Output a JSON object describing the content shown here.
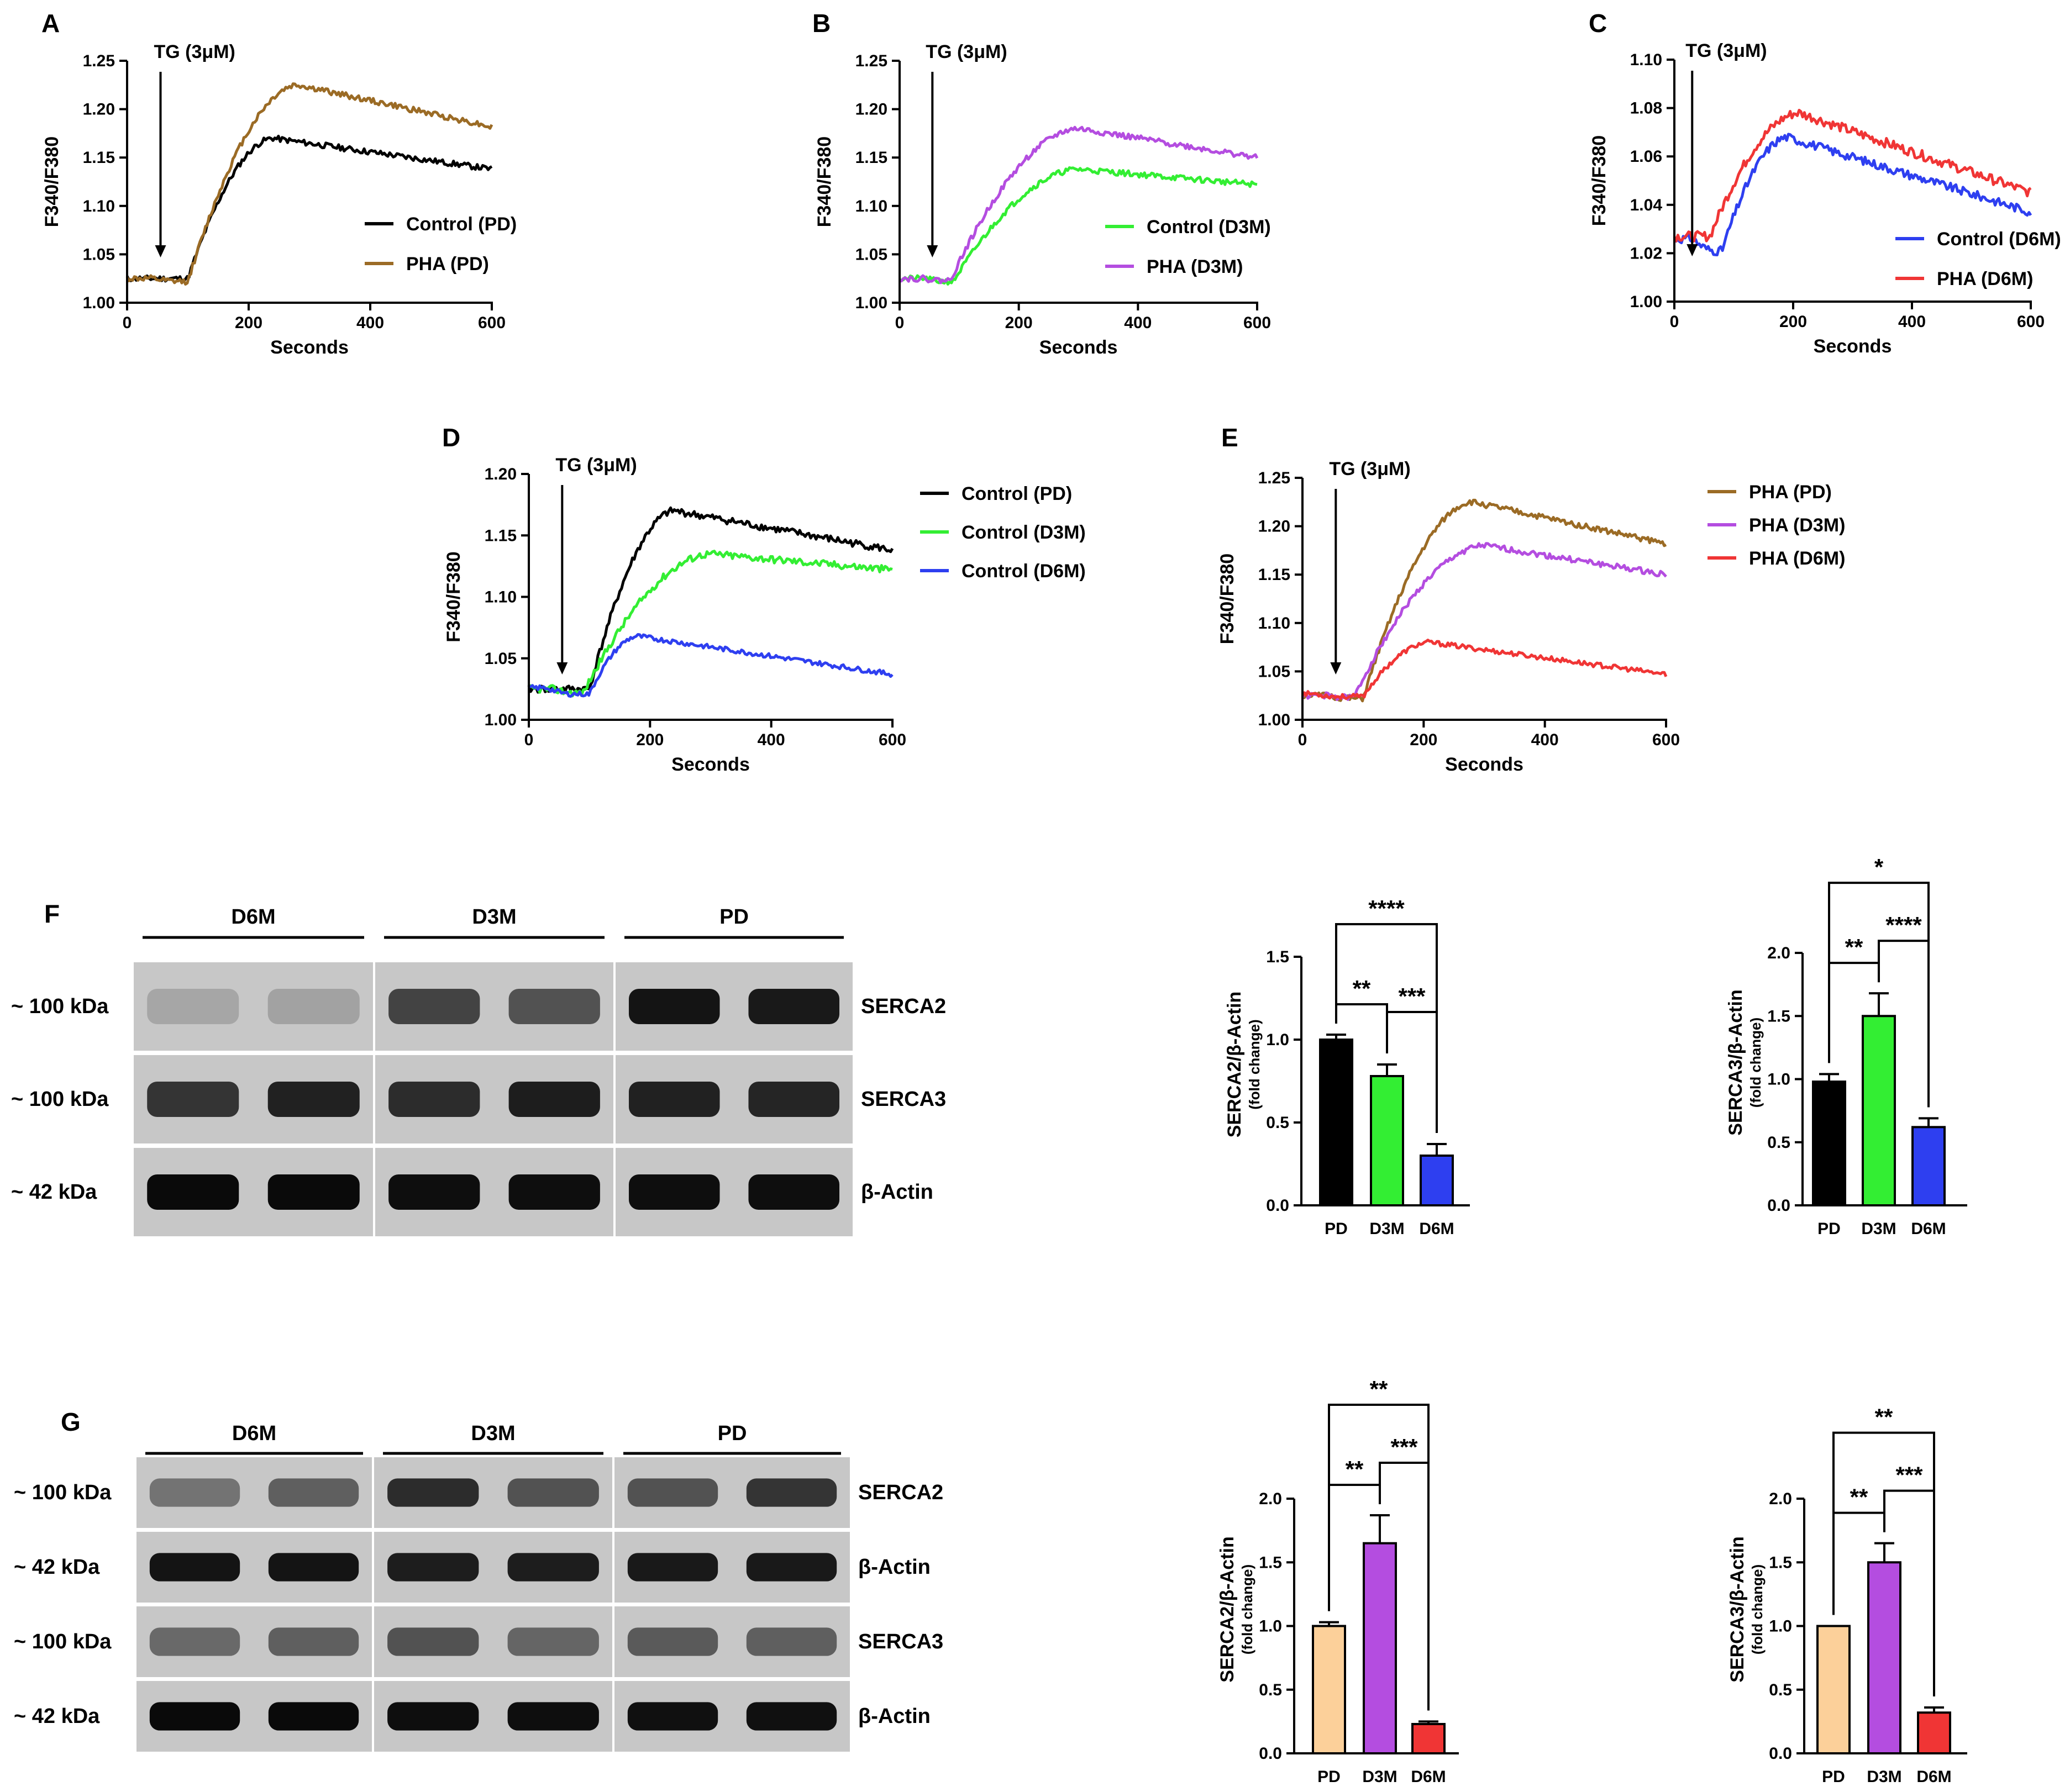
{
  "chart_data": [
    {
      "id": "A",
      "type": "line",
      "panel_label": "A",
      "xlabel": "Seconds",
      "ylabel": "F340/F380",
      "xlim": [
        0,
        600
      ],
      "ylim": [
        1.0,
        1.25
      ],
      "xticks": [
        "0",
        "200",
        "400",
        "600"
      ],
      "yticks": [
        "1.00",
        "1.05",
        "1.10",
        "1.15",
        "1.20",
        "1.25"
      ],
      "annotation": {
        "text": "TG (3μM)",
        "x": 55
      },
      "series": [
        {
          "name": "Control (PD)",
          "color": "#000000",
          "base": 1.025,
          "dip_t": 80,
          "dip": 0.0,
          "rise_start": 100,
          "peak_t": 240,
          "peak": 1.17,
          "end": 1.138,
          "noise": 0.003,
          "seed": 11
        },
        {
          "name": "PHA (PD)",
          "color": "#9b6b25",
          "base": 1.025,
          "dip_t": 80,
          "dip": 0.003,
          "rise_start": 100,
          "peak_t": 280,
          "peak": 1.225,
          "end": 1.182,
          "noise": 0.003,
          "seed": 12
        }
      ]
    },
    {
      "id": "B",
      "type": "line",
      "panel_label": "B",
      "xlabel": "Seconds",
      "ylabel": "F340/F380",
      "xlim": [
        0,
        600
      ],
      "ylim": [
        1.0,
        1.25
      ],
      "xticks": [
        "0",
        "200",
        "400",
        "600"
      ],
      "yticks": [
        "1.00",
        "1.05",
        "1.10",
        "1.15",
        "1.20",
        "1.25"
      ],
      "annotation": {
        "text": "TG (3μM)",
        "x": 55
      },
      "series": [
        {
          "name": "Control (D3M)",
          "color": "#33ee33",
          "base": 1.025,
          "dip_t": 80,
          "dip": 0.003,
          "rise_start": 90,
          "peak_t": 300,
          "peak": 1.138,
          "end": 1.122,
          "noise": 0.003,
          "seed": 21
        },
        {
          "name": "PHA (D3M)",
          "color": "#b44de0",
          "base": 1.025,
          "dip_t": 80,
          "dip": 0.002,
          "rise_start": 85,
          "peak_t": 300,
          "peak": 1.18,
          "end": 1.15,
          "noise": 0.003,
          "seed": 22
        }
      ]
    },
    {
      "id": "C",
      "type": "line",
      "panel_label": "C",
      "xlabel": "Seconds",
      "ylabel": "F340/F380",
      "xlim": [
        0,
        600
      ],
      "ylim": [
        1.0,
        1.1
      ],
      "xticks": [
        "0",
        "200",
        "400",
        "600"
      ],
      "yticks": [
        "1.00",
        "1.02",
        "1.04",
        "1.06",
        "1.08",
        "1.10"
      ],
      "annotation": {
        "text": "TG (3μM)",
        "x": 30
      },
      "series": [
        {
          "name": "Control (D6M)",
          "color": "#2e3ff0",
          "base": 1.026,
          "dip_t": 70,
          "dip": 0.005,
          "rise_start": 80,
          "peak_t": 190,
          "peak": 1.068,
          "end": 1.037,
          "noise": 0.0018,
          "seed": 31
        },
        {
          "name": "PHA (D6M)",
          "color": "#f03535",
          "base": 1.027,
          "dip_t": 60,
          "dip": 0.0,
          "rise_start": 60,
          "peak_t": 210,
          "peak": 1.078,
          "end": 1.045,
          "noise": 0.002,
          "seed": 32
        }
      ]
    },
    {
      "id": "D",
      "type": "line",
      "panel_label": "D",
      "xlabel": "Seconds",
      "ylabel": "F340/F380",
      "xlim": [
        0,
        600
      ],
      "ylim": [
        1.0,
        1.2
      ],
      "xticks": [
        "0",
        "200",
        "400",
        "600"
      ],
      "yticks": [
        "1.00",
        "1.05",
        "1.10",
        "1.15",
        "1.20"
      ],
      "annotation": {
        "text": "TG (3μM)",
        "x": 55
      },
      "series": [
        {
          "name": "Control (PD)",
          "color": "#000000",
          "base": 1.025,
          "dip_t": 80,
          "dip": 0.0,
          "rise_start": 100,
          "peak_t": 240,
          "peak": 1.17,
          "end": 1.138,
          "noise": 0.003,
          "seed": 41
        },
        {
          "name": "Control (D3M)",
          "color": "#33ee33",
          "base": 1.025,
          "dip_t": 80,
          "dip": 0.003,
          "rise_start": 90,
          "peak_t": 300,
          "peak": 1.135,
          "end": 1.122,
          "noise": 0.003,
          "seed": 42
        },
        {
          "name": "Control (D6M)",
          "color": "#2e3ff0",
          "base": 1.026,
          "dip_t": 70,
          "dip": 0.005,
          "rise_start": 100,
          "peak_t": 180,
          "peak": 1.068,
          "end": 1.037,
          "noise": 0.002,
          "seed": 43
        }
      ]
    },
    {
      "id": "E",
      "type": "line",
      "panel_label": "E",
      "xlabel": "Seconds",
      "ylabel": "F340/F380",
      "xlim": [
        0,
        600
      ],
      "ylim": [
        1.0,
        1.25
      ],
      "xticks": [
        "0",
        "200",
        "400",
        "600"
      ],
      "yticks": [
        "1.00",
        "1.05",
        "1.10",
        "1.15",
        "1.20",
        "1.25"
      ],
      "annotation": {
        "text": "TG (3μM)",
        "x": 55
      },
      "series": [
        {
          "name": "PHA (PD)",
          "color": "#9b6b25",
          "base": 1.025,
          "dip_t": 80,
          "dip": 0.003,
          "rise_start": 100,
          "peak_t": 280,
          "peak": 1.225,
          "end": 1.182,
          "noise": 0.003,
          "seed": 51
        },
        {
          "name": "PHA (D3M)",
          "color": "#b44de0",
          "base": 1.025,
          "dip_t": 80,
          "dip": 0.002,
          "rise_start": 85,
          "peak_t": 300,
          "peak": 1.18,
          "end": 1.15,
          "noise": 0.003,
          "seed": 52
        },
        {
          "name": "PHA (D6M)",
          "color": "#f03535",
          "base": 1.027,
          "dip_t": 60,
          "dip": 0.003,
          "rise_start": 100,
          "peak_t": 210,
          "peak": 1.08,
          "end": 1.047,
          "noise": 0.0025,
          "seed": 53
        }
      ]
    },
    {
      "id": "F1",
      "type": "bar",
      "panel_label": "",
      "ylabel": "SERCA2/β-Actin",
      "ylabel_sub": "(fold change)",
      "ylim": [
        0,
        1.5
      ],
      "yticks": [
        "0.0",
        "0.5",
        "1.0",
        "1.5"
      ],
      "categories": [
        "PD",
        "D3M",
        "D6M"
      ],
      "values": [
        1.0,
        0.78,
        0.3
      ],
      "errors": [
        0.03,
        0.07,
        0.07
      ],
      "colors": [
        "#000000",
        "#33ee33",
        "#2e3ff0"
      ],
      "comparisons": [
        {
          "a": 0,
          "b": 1,
          "label": "**"
        },
        {
          "a": 1,
          "b": 2,
          "label": "***"
        },
        {
          "a": 0,
          "b": 2,
          "label": "****"
        }
      ]
    },
    {
      "id": "F2",
      "type": "bar",
      "panel_label": "",
      "ylabel": "SERCA3/β-Actin",
      "ylabel_sub": "(fold change)",
      "ylim": [
        0,
        2.0
      ],
      "yticks": [
        "0.0",
        "0.5",
        "1.0",
        "1.5",
        "2.0"
      ],
      "categories": [
        "PD",
        "D3M",
        "D6M"
      ],
      "values": [
        0.98,
        1.5,
        0.62
      ],
      "errors": [
        0.06,
        0.18,
        0.07
      ],
      "colors": [
        "#000000",
        "#33ee33",
        "#2e3ff0"
      ],
      "comparisons": [
        {
          "a": 0,
          "b": 1,
          "label": "**"
        },
        {
          "a": 1,
          "b": 2,
          "label": "****"
        },
        {
          "a": 0,
          "b": 2,
          "label": "*"
        }
      ]
    },
    {
      "id": "G1",
      "type": "bar",
      "panel_label": "",
      "ylabel": "SERCA2/β-Actin",
      "ylabel_sub": "(fold change)",
      "ylim": [
        0,
        2.0
      ],
      "yticks": [
        "0.0",
        "0.5",
        "1.0",
        "1.5",
        "2.0"
      ],
      "categories": [
        "PD",
        "D3M",
        "D6M"
      ],
      "values": [
        1.0,
        1.65,
        0.23
      ],
      "errors": [
        0.03,
        0.22,
        0.02
      ],
      "colors": [
        "#fcd09a",
        "#b44de0",
        "#f03535"
      ],
      "comparisons": [
        {
          "a": 0,
          "b": 1,
          "label": "**"
        },
        {
          "a": 1,
          "b": 2,
          "label": "***"
        },
        {
          "a": 0,
          "b": 2,
          "label": "**"
        }
      ]
    },
    {
      "id": "G2",
      "type": "bar",
      "panel_label": "",
      "ylabel": "SERCA3/β-Actin",
      "ylabel_sub": "(fold change)",
      "ylim": [
        0,
        2.0
      ],
      "yticks": [
        "0.0",
        "0.5",
        "1.0",
        "1.5",
        "2.0"
      ],
      "categories": [
        "PD",
        "D3M",
        "D6M"
      ],
      "values": [
        1.0,
        1.5,
        0.32
      ],
      "errors": [
        0.0,
        0.15,
        0.04
      ],
      "colors": [
        "#fcd09a",
        "#b44de0",
        "#f03535"
      ],
      "comparisons": [
        {
          "a": 0,
          "b": 1,
          "label": "**"
        },
        {
          "a": 1,
          "b": 2,
          "label": "***"
        },
        {
          "a": 0,
          "b": 2,
          "label": "**"
        }
      ]
    }
  ],
  "blots": {
    "F": {
      "panel_label": "F",
      "groups": [
        "D6M",
        "D3M",
        "PD"
      ],
      "rows": [
        {
          "mw": "~ 100 kDa",
          "protein": "SERCA2",
          "intensity": [
            0.18,
            0.2,
            0.7,
            0.62,
            0.95,
            0.92
          ]
        },
        {
          "mw": "~ 100 kDa",
          "protein": "SERCA3",
          "intensity": [
            0.78,
            0.88,
            0.82,
            0.9,
            0.88,
            0.86
          ]
        },
        {
          "mw": "~ 42 kDa",
          "protein": "β-Actin",
          "intensity": [
            1.0,
            1.0,
            0.98,
            0.98,
            0.98,
            0.98
          ]
        }
      ]
    },
    "G": {
      "panel_label": "G",
      "groups": [
        "D6M",
        "D3M",
        "PD"
      ],
      "rows": [
        {
          "mw": "~ 100 kDa",
          "protein": "SERCA2",
          "intensity": [
            0.45,
            0.55,
            0.82,
            0.62,
            0.62,
            0.78
          ]
        },
        {
          "mw": "~ 42 kDa",
          "protein": "β-Actin",
          "intensity": [
            0.95,
            0.95,
            0.9,
            0.9,
            0.92,
            0.92
          ]
        },
        {
          "mw": "~ 100 kDa",
          "protein": "SERCA3",
          "intensity": [
            0.5,
            0.55,
            0.62,
            0.52,
            0.58,
            0.55
          ]
        },
        {
          "mw": "~ 42 kDa",
          "protein": "β-Actin",
          "intensity": [
            1.0,
            1.0,
            0.98,
            0.98,
            0.97,
            0.97
          ]
        }
      ]
    }
  }
}
